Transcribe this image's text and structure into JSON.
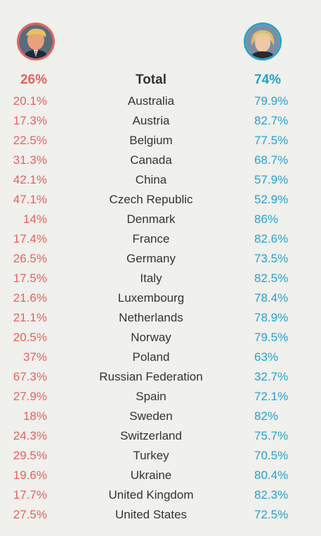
{
  "colors": {
    "left": "#e8615f",
    "right": "#27a2cc",
    "text": "#333333",
    "background": "#f0f0ec"
  },
  "candidates": {
    "left": {
      "avatar_icon": "trump-portrait-icon"
    },
    "right": {
      "avatar_icon": "clinton-portrait-icon"
    }
  },
  "total": {
    "label": "Total",
    "left": "26%",
    "right": "74%"
  },
  "chart_data": {
    "type": "table",
    "columns": [
      "",
      "",
      ""
    ],
    "total": {
      "label": "Total",
      "left": 26,
      "right": 74
    },
    "rows": [
      {
        "country": "Australia",
        "left": "20.1%",
        "right": "79.9%"
      },
      {
        "country": "Austria",
        "left": "17.3%",
        "right": "82.7%"
      },
      {
        "country": "Belgium",
        "left": "22.5%",
        "right": "77.5%"
      },
      {
        "country": "Canada",
        "left": "31.3%",
        "right": "68.7%"
      },
      {
        "country": "China",
        "left": "42.1%",
        "right": "57.9%"
      },
      {
        "country": "Czech Republic",
        "left": "47.1%",
        "right": "52.9%"
      },
      {
        "country": "Denmark",
        "left": "14%",
        "right": "86%"
      },
      {
        "country": "France",
        "left": "17.4%",
        "right": "82.6%"
      },
      {
        "country": "Germany",
        "left": "26.5%",
        "right": "73.5%"
      },
      {
        "country": "Italy",
        "left": "17.5%",
        "right": "82.5%"
      },
      {
        "country": "Luxembourg",
        "left": "21.6%",
        "right": "78.4%"
      },
      {
        "country": "Netherlands",
        "left": "21.1%",
        "right": "78.9%"
      },
      {
        "country": "Norway",
        "left": "20.5%",
        "right": "79.5%"
      },
      {
        "country": "Poland",
        "left": "37%",
        "right": "63%"
      },
      {
        "country": "Russian Federation",
        "left": "67.3%",
        "right": "32.7%"
      },
      {
        "country": "Spain",
        "left": "27.9%",
        "right": "72.1%"
      },
      {
        "country": "Sweden",
        "left": "18%",
        "right": "82%"
      },
      {
        "country": "Switzerland",
        "left": "24.3%",
        "right": "75.7%"
      },
      {
        "country": "Turkey",
        "left": "29.5%",
        "right": "70.5%"
      },
      {
        "country": "Ukraine",
        "left": "19.6%",
        "right": "80.4%"
      },
      {
        "country": "United Kingdom",
        "left": "17.7%",
        "right": "82.3%"
      },
      {
        "country": "United States",
        "left": "27.5%",
        "right": "72.5%"
      }
    ]
  }
}
